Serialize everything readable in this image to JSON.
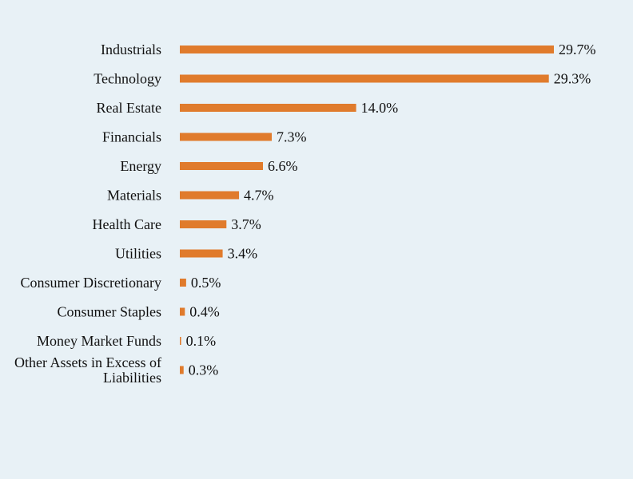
{
  "chart_data": {
    "type": "bar",
    "orientation": "horizontal",
    "title": "",
    "xlabel": "",
    "ylabel": "",
    "categories": [
      "Industrials",
      "Technology",
      "Real Estate",
      "Financials",
      "Energy",
      "Materials",
      "Health Care",
      "Utilities",
      "Consumer Discretionary",
      "Consumer Staples",
      "Money Market Funds",
      "Other Assets in Excess of Liabilities"
    ],
    "values": [
      29.7,
      29.3,
      14.0,
      7.3,
      6.6,
      4.7,
      3.7,
      3.4,
      0.5,
      0.4,
      0.1,
      0.3
    ],
    "value_labels": [
      "29.7%",
      "29.3%",
      "14.0%",
      "7.3%",
      "6.6%",
      "4.7%",
      "3.7%",
      "3.4%",
      "0.5%",
      "0.4%",
      "0.1%",
      "0.3%"
    ],
    "xlim": [
      0,
      29.7
    ],
    "grid": false,
    "legend": "none",
    "bar_color": "#e07b2c",
    "background_color": "#e8f1f6"
  }
}
